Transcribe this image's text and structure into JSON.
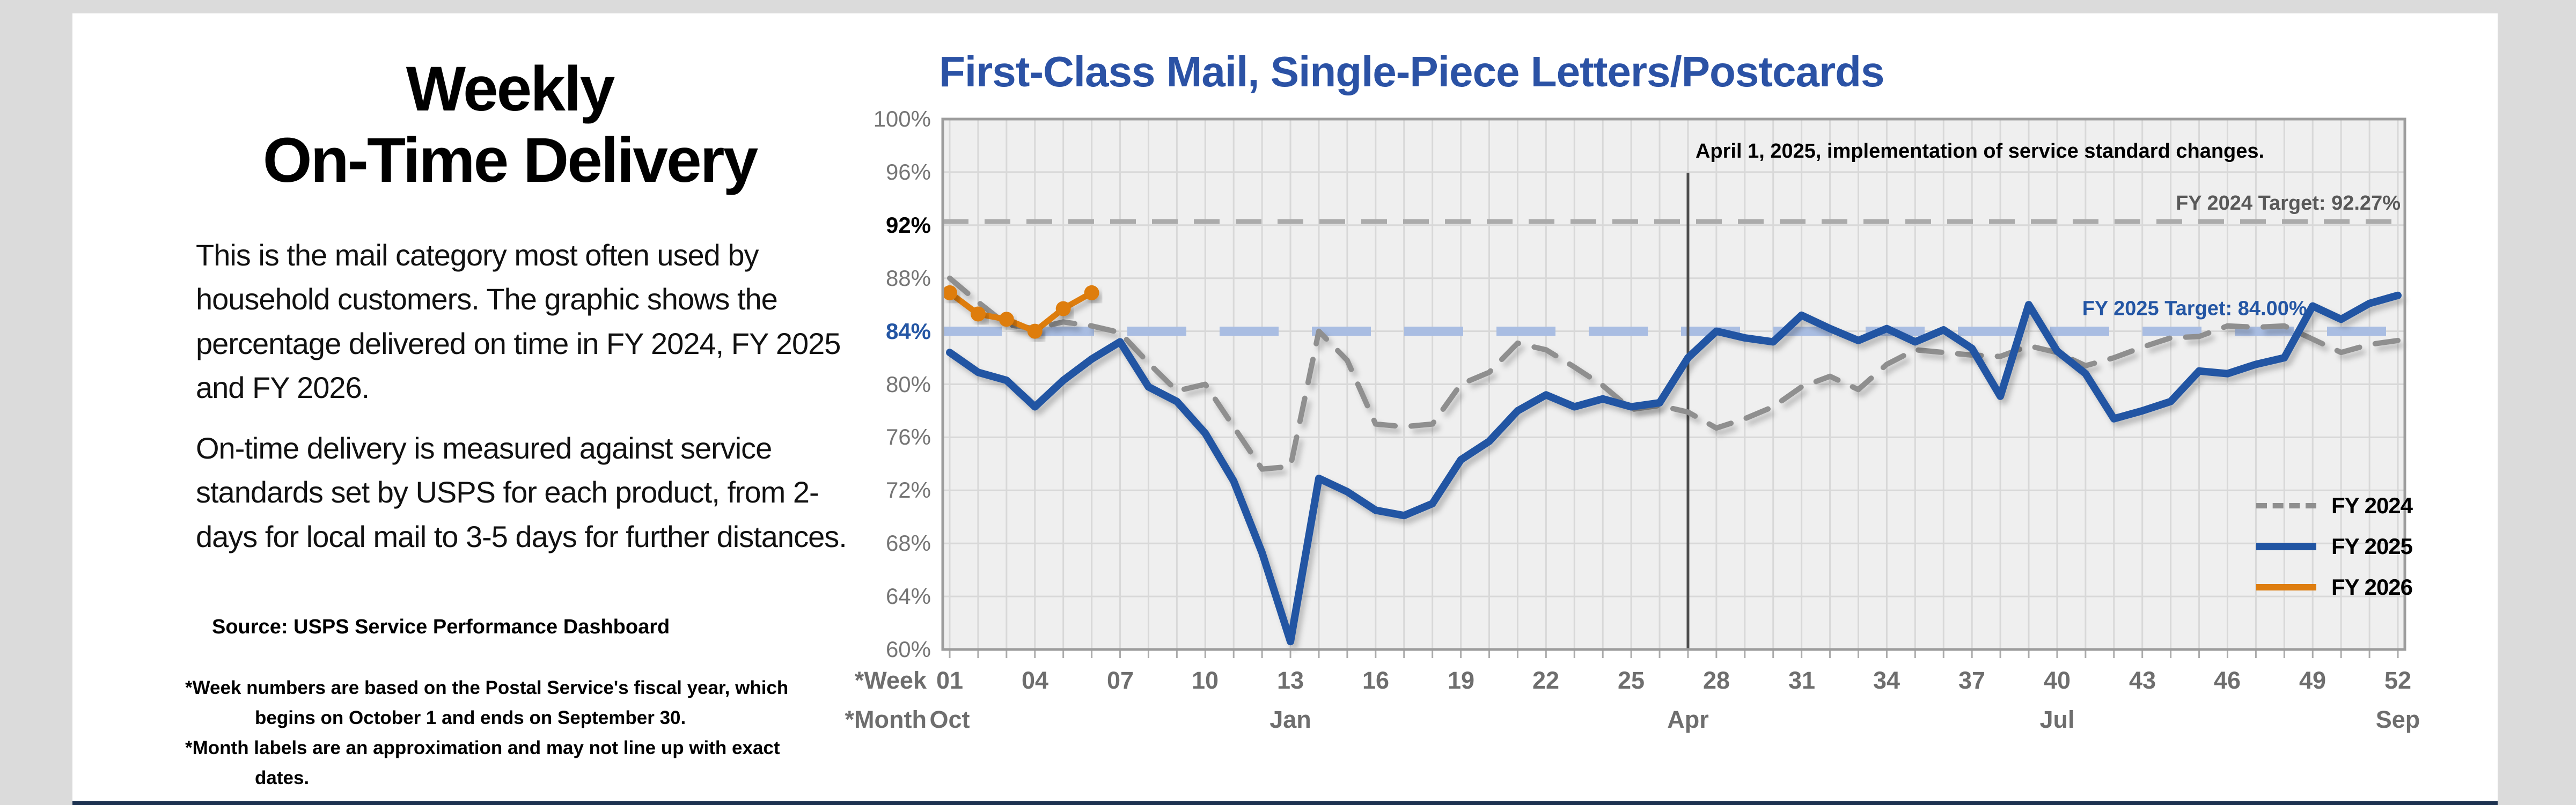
{
  "page": {
    "background_color": "#dbdbdb",
    "content_background": "#ffffff",
    "footer_bar_color": "#1d3250"
  },
  "left_panel": {
    "title_line1": "Weekly",
    "title_line2": "On-Time Delivery",
    "paragraph1": "This is the mail category most often used by household customers. The graphic shows the percentage delivered on time in FY 2024, FY 2025 and FY 2026.",
    "paragraph2": "On-time delivery is measured against service standards set by USPS for each product, from 2-days for local mail to 3-5 days for further distances.",
    "source": "Source: USPS Service Performance Dashboard",
    "footnote1": "*Week numbers are based on the Postal Service's fiscal year, which begins on October 1 and ends on September 30.",
    "footnote2": "*Month labels are an approximation and may not line up with exact dates."
  },
  "chart_data": {
    "type": "line",
    "title": "First-Class Mail, Single-Piece Letters/Postcards",
    "title_color": "#2b52a5",
    "ylabel": "",
    "xlabel": "",
    "y_axis": {
      "min": 60,
      "max": 100,
      "step": 4,
      "unit": "%",
      "tick_labels": [
        "100%",
        "96%",
        "92%",
        "88%",
        "84%",
        "80%",
        "76%",
        "72%",
        "68%",
        "64%",
        "60%"
      ],
      "highlight_92_color": "#000000",
      "highlight_84_color": "#2456a4",
      "default_color": "#757575"
    },
    "x_axis": {
      "row1_caption": "*Week",
      "row2_caption": "*Month",
      "weeks_total": 52,
      "tick_weeks": [
        1,
        4,
        7,
        10,
        13,
        16,
        19,
        22,
        25,
        28,
        31,
        34,
        37,
        40,
        43,
        46,
        49,
        52
      ],
      "months": [
        {
          "week": 1,
          "label": "Oct"
        },
        {
          "week": 13,
          "label": "Jan"
        },
        {
          "week": 27,
          "label": "Apr"
        },
        {
          "week": 40,
          "label": "Jul"
        },
        {
          "week": 52,
          "label": "Sep"
        }
      ]
    },
    "grid": {
      "on": true,
      "color": "#d8d8d8",
      "plot_bg": "#efefef",
      "border_color": "#9d9d9d"
    },
    "targets": [
      {
        "name": "fy2024-target",
        "value": 92.27,
        "label": "FY 2024 Target: 92.27%",
        "line_color": "#ababab",
        "label_color": "#595959",
        "dash": "48 30",
        "width": 9
      },
      {
        "name": "fy2025-target",
        "value": 84.0,
        "label": "FY 2025 Target: 84.00%",
        "line_color": "#a9bde2",
        "label_color": "#2456a4",
        "dash": "110 62",
        "width": 17
      }
    ],
    "annotation": {
      "text": "April 1, 2025, implementation of service standard changes.",
      "week": 27,
      "line_color": "#4d4d4d"
    },
    "legend_position": "inside-right-bottom",
    "series": [
      {
        "name": "FY 2024",
        "color": "#8f8f8f",
        "style": "dashed",
        "width": 10,
        "start_week": 1,
        "values": [
          88.0,
          86.2,
          84.5,
          84.2,
          84.7,
          84.4,
          83.9,
          81.6,
          79.5,
          80.0,
          76.8,
          73.6,
          73.8,
          84.0,
          81.8,
          77.0,
          76.8,
          77.0,
          80.0,
          80.9,
          83.1,
          82.6,
          81.3,
          79.9,
          78.1,
          78.4,
          77.9,
          76.7,
          77.4,
          78.3,
          79.8,
          80.6,
          79.6,
          81.5,
          82.6,
          82.4,
          82.2,
          82.1,
          82.9,
          82.4,
          81.4,
          82.0,
          82.8,
          83.5,
          83.6,
          84.4,
          84.3,
          84.4,
          83.4,
          82.4,
          83.0,
          83.3
        ]
      },
      {
        "name": "FY 2025",
        "color": "#2155a3",
        "style": "solid",
        "width": 14,
        "start_week": 1,
        "values": [
          82.4,
          80.9,
          80.3,
          78.3,
          80.3,
          81.9,
          83.2,
          79.8,
          78.7,
          76.3,
          72.7,
          67.3,
          60.6,
          72.9,
          71.9,
          70.5,
          70.1,
          71.0,
          74.3,
          75.7,
          78.0,
          79.2,
          78.3,
          78.9,
          78.3,
          78.6,
          82.0,
          84.0,
          83.5,
          83.2,
          85.2,
          84.2,
          83.3,
          84.2,
          83.2,
          84.1,
          82.7,
          79.1,
          86.0,
          82.5,
          80.8,
          77.4,
          78.0,
          78.7,
          81.0,
          80.8,
          81.5,
          82.0,
          85.9,
          84.9,
          86.1,
          86.7
        ]
      },
      {
        "name": "FY 2026",
        "color": "#de7d0f",
        "style": "solid-markers",
        "width": 11,
        "start_week": 1,
        "values": [
          86.9,
          85.3,
          84.9,
          84.0,
          85.7,
          86.9
        ]
      }
    ]
  }
}
